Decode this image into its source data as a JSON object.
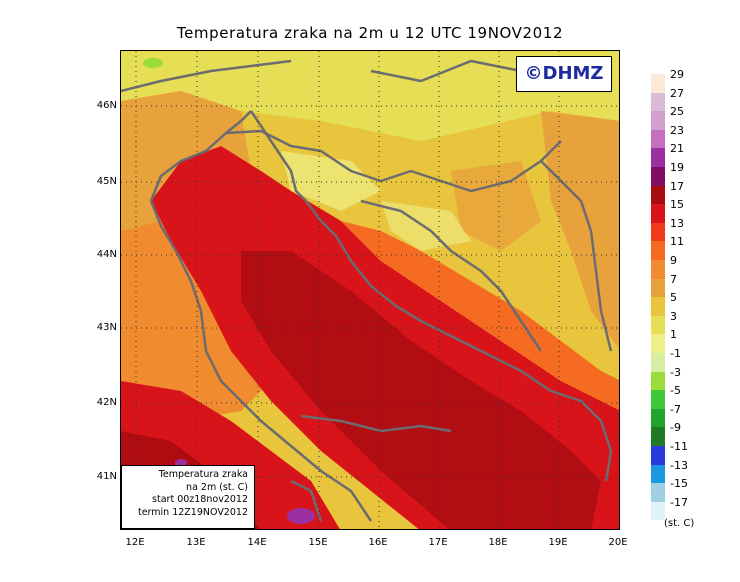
{
  "title": "Temperatura zraka na 2m u 12 UTC 19NOV2012",
  "logo": "©DHMZ",
  "info_box": {
    "line1": "Temperatura zraka",
    "line2": "na 2m (st. C)",
    "line3": "start 00z18nov2012",
    "line4": "termin 12Z19NOV2012"
  },
  "lat_labels": [
    "46N",
    "45N",
    "44N",
    "43N",
    "42N",
    "41N"
  ],
  "lon_labels": [
    "12E",
    "13E",
    "14E",
    "15E",
    "16E",
    "17E",
    "18E",
    "19E",
    "20E"
  ],
  "legend": {
    "unit": "(st. C)",
    "labels": [
      "29",
      "27",
      "25",
      "23",
      "21",
      "19",
      "17",
      "15",
      "13",
      "11",
      "9",
      "7",
      "5",
      "3",
      "1",
      "-1",
      "-3",
      "-5",
      "-7",
      "-9",
      "-11",
      "-13",
      "-15",
      "-17"
    ],
    "colors": [
      "#fbe8d6",
      "#d9bcd7",
      "#d39fcf",
      "#c46fc0",
      "#9c2fa2",
      "#800d66",
      "#a80b10",
      "#d8141a",
      "#f03a1a",
      "#f56b22",
      "#f08b30",
      "#e8a23c",
      "#e8c53c",
      "#e6de55",
      "#f0ef88",
      "#d8eda4",
      "#9bdc3a",
      "#3fc83a",
      "#22a32c",
      "#1f7c25",
      "#2a3bdd",
      "#1b98e0",
      "#9fcfe0",
      "#dff4f8"
    ]
  },
  "colors": {
    "coast": "#6b6b70",
    "grid": "#333333",
    "logo_text": "#1e2aa0"
  }
}
